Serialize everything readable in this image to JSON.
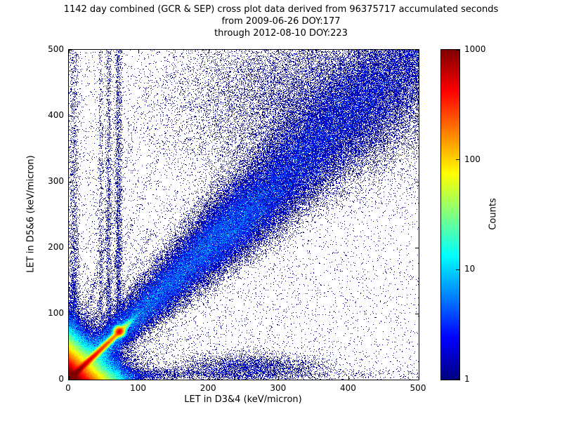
{
  "title": {
    "line1": "1142 day combined (GCR & SEP) cross plot data derived from 96375717 accumulated seconds",
    "line2": "from 2009-06-26 DOY:177",
    "line3": "through 2012-08-10 DOY:223"
  },
  "chart_data": {
    "type": "heatmap",
    "title": "1142 day combined (GCR & SEP) cross plot data derived from 96375717 accumulated seconds\nfrom 2009-06-26 DOY:177\nthrough 2012-08-10 DOY:223",
    "xlabel": "LET in D3&4 (keV/micron)",
    "ylabel": "LET in D5&6 (keV/micron)",
    "xlim": [
      0,
      500
    ],
    "ylim": [
      0,
      500
    ],
    "xticks": [
      0,
      100,
      200,
      300,
      400,
      500
    ],
    "yticks": [
      0,
      100,
      200,
      300,
      400,
      500
    ],
    "grid": false,
    "colorbar": {
      "label": "Counts",
      "scale": "log",
      "min": 1,
      "max": 1000,
      "ticks": [
        1,
        10,
        100,
        1000
      ],
      "colormap": "jet"
    },
    "features": {
      "seed": 20120810,
      "base_scatter": {
        "uniform": 0.02,
        "origin_amp": 0.05,
        "origin_scale": 260
      },
      "corner_glow": {
        "amp": 2600,
        "sx": 14,
        "sy": 14
      },
      "diagonal_sharp": {
        "amp": 1150,
        "width": 2.2,
        "decay": 34,
        "cutoff": 80,
        "soft": 5,
        "tip": {
          "x": 72,
          "y": 73,
          "amp": 380,
          "sigma": 3.5
        }
      },
      "diagonal_broad": {
        "w0": 6,
        "wslope": 0.075,
        "a0": 7.5,
        "adecay": 175,
        "abase": 0.75,
        "blob_r": 230,
        "blob_amp": 1.6,
        "blob_sigma": 45
      },
      "upper_cloud": {
        "x": 345,
        "y": 425,
        "sx": 95,
        "sy": 65,
        "amp": 0.55
      },
      "h_band": {
        "y0": 8,
        "sigma": 4.5,
        "a_near": 4,
        "near_decay": 75,
        "a_far": 0.3,
        "far_decay": 420,
        "clump": {
          "x": 258,
          "y": 18,
          "sx": 55,
          "sy": 11,
          "amp": 1.1
        }
      },
      "v_band": {
        "x0": 7,
        "sigma": 4,
        "a_near": 3,
        "near_decay": 75,
        "a_far": 0.5,
        "far_decay": 800
      },
      "vertical_streaks": [
        {
          "x": 57,
          "amp": 0.85,
          "width": 2.4
        },
        {
          "x": 71,
          "amp": 1.25,
          "width": 2.6
        },
        {
          "x": 46,
          "amp": 0.5,
          "width": 2.0
        }
      ],
      "streak_base": 0.3,
      "streak_decay": 240,
      "origin_rays": [
        {
          "slope": 1.45,
          "amp": 1.7,
          "width": 2.4,
          "length": 110
        },
        {
          "slope": 1.85,
          "amp": 1.3,
          "width": 2.4,
          "length": 95
        },
        {
          "slope": 2.6,
          "amp": 0.95,
          "width": 2.6,
          "length": 120
        },
        {
          "slope": 4.0,
          "amp": 0.8,
          "width": 3.0,
          "length": 130
        },
        {
          "slope": 0.69,
          "amp": 1.1,
          "width": 2.2,
          "length": 100
        },
        {
          "slope": 0.52,
          "amp": 0.8,
          "width": 2.2,
          "length": 90
        },
        {
          "slope": 0.36,
          "amp": 0.6,
          "width": 2.2,
          "length": 80
        }
      ]
    }
  }
}
